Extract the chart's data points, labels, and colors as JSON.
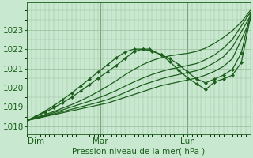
{
  "bg_color": "#c8e8d0",
  "grid_color": "#99bb99",
  "line_color": "#1a5e1a",
  "ylim": [
    1017.6,
    1024.4
  ],
  "xlim": [
    0,
    1.0
  ],
  "xtick_labels": [
    "Dim",
    "Mar",
    "Lun"
  ],
  "xtick_positions": [
    0.04,
    0.33,
    0.72
  ],
  "ytick_values": [
    1018,
    1019,
    1020,
    1021,
    1022,
    1023
  ],
  "xlabel": "Pression niveau de la mer( hPa )",
  "font_size": 7.5,
  "vlines": [
    0.04,
    0.33,
    0.72
  ],
  "lines": [
    {
      "x": [
        0.0,
        0.04,
        0.08,
        0.12,
        0.16,
        0.2,
        0.24,
        0.28,
        0.32,
        0.36,
        0.4,
        0.44,
        0.48,
        0.52,
        0.56,
        0.6,
        0.64,
        0.68,
        0.72,
        0.76,
        0.8,
        0.84,
        0.88,
        0.92,
        0.96,
        1.0
      ],
      "y": [
        1018.3,
        1018.4,
        1018.5,
        1018.6,
        1018.7,
        1018.8,
        1018.9,
        1019.0,
        1019.1,
        1019.2,
        1019.35,
        1019.5,
        1019.65,
        1019.8,
        1019.95,
        1020.1,
        1020.2,
        1020.3,
        1020.4,
        1020.5,
        1020.65,
        1020.85,
        1021.1,
        1021.5,
        1022.5,
        1023.5
      ],
      "marker": false,
      "lw": 0.9
    },
    {
      "x": [
        0.0,
        0.04,
        0.08,
        0.12,
        0.16,
        0.2,
        0.24,
        0.28,
        0.32,
        0.36,
        0.4,
        0.44,
        0.48,
        0.52,
        0.56,
        0.6,
        0.64,
        0.68,
        0.72,
        0.76,
        0.8,
        0.84,
        0.88,
        0.92,
        0.96,
        1.0
      ],
      "y": [
        1018.3,
        1018.4,
        1018.52,
        1018.64,
        1018.76,
        1018.88,
        1019.0,
        1019.12,
        1019.24,
        1019.38,
        1019.55,
        1019.75,
        1019.95,
        1020.15,
        1020.3,
        1020.45,
        1020.58,
        1020.68,
        1020.78,
        1020.88,
        1021.05,
        1021.3,
        1021.6,
        1022.1,
        1022.9,
        1023.7
      ],
      "marker": false,
      "lw": 0.9
    },
    {
      "x": [
        0.0,
        0.04,
        0.08,
        0.12,
        0.16,
        0.2,
        0.24,
        0.28,
        0.32,
        0.36,
        0.4,
        0.44,
        0.48,
        0.52,
        0.56,
        0.6,
        0.64,
        0.68,
        0.72,
        0.76,
        0.8,
        0.84,
        0.88,
        0.92,
        0.96,
        1.0
      ],
      "y": [
        1018.3,
        1018.42,
        1018.55,
        1018.7,
        1018.85,
        1019.0,
        1019.15,
        1019.3,
        1019.47,
        1019.65,
        1019.85,
        1020.08,
        1020.3,
        1020.5,
        1020.68,
        1020.83,
        1020.96,
        1021.05,
        1021.15,
        1021.25,
        1021.45,
        1021.7,
        1022.05,
        1022.5,
        1023.2,
        1023.9
      ],
      "marker": false,
      "lw": 0.9
    },
    {
      "x": [
        0.0,
        0.04,
        0.08,
        0.12,
        0.16,
        0.2,
        0.24,
        0.28,
        0.32,
        0.36,
        0.4,
        0.44,
        0.48,
        0.52,
        0.56,
        0.6,
        0.64,
        0.68,
        0.72,
        0.76,
        0.8,
        0.84,
        0.88,
        0.92,
        0.96,
        1.0
      ],
      "y": [
        1018.3,
        1018.44,
        1018.6,
        1018.76,
        1018.94,
        1019.12,
        1019.32,
        1019.55,
        1019.8,
        1020.07,
        1020.36,
        1020.67,
        1020.95,
        1021.2,
        1021.4,
        1021.55,
        1021.65,
        1021.72,
        1021.78,
        1021.88,
        1022.05,
        1022.3,
        1022.6,
        1022.95,
        1023.4,
        1024.0
      ],
      "marker": false,
      "lw": 0.9
    },
    {
      "x": [
        0.0,
        0.04,
        0.08,
        0.12,
        0.16,
        0.2,
        0.24,
        0.28,
        0.32,
        0.36,
        0.4,
        0.44,
        0.48,
        0.52,
        0.55,
        0.6,
        0.64,
        0.68,
        0.72,
        0.76,
        0.8,
        0.84,
        0.88,
        0.92,
        0.96,
        1.0
      ],
      "y": [
        1018.3,
        1018.5,
        1018.72,
        1018.96,
        1019.22,
        1019.5,
        1019.82,
        1020.15,
        1020.5,
        1020.82,
        1021.15,
        1021.52,
        1021.88,
        1022.0,
        1022.0,
        1021.7,
        1021.35,
        1020.9,
        1020.5,
        1020.2,
        1019.9,
        1020.3,
        1020.45,
        1020.65,
        1021.3,
        1023.6
      ],
      "marker": true,
      "lw": 0.9
    },
    {
      "x": [
        0.0,
        0.04,
        0.08,
        0.12,
        0.16,
        0.2,
        0.24,
        0.28,
        0.32,
        0.36,
        0.4,
        0.44,
        0.48,
        0.52,
        0.56,
        0.6,
        0.64,
        0.68,
        0.72,
        0.76,
        0.8,
        0.84,
        0.88,
        0.92,
        0.96,
        1.0
      ],
      "y": [
        1018.3,
        1018.52,
        1018.78,
        1019.06,
        1019.38,
        1019.72,
        1020.08,
        1020.45,
        1020.82,
        1021.18,
        1021.55,
        1021.85,
        1022.0,
        1022.0,
        1021.88,
        1021.72,
        1021.5,
        1021.2,
        1020.8,
        1020.45,
        1020.25,
        1020.45,
        1020.65,
        1020.95,
        1021.8,
        1023.8
      ],
      "marker": true,
      "lw": 0.9
    }
  ]
}
